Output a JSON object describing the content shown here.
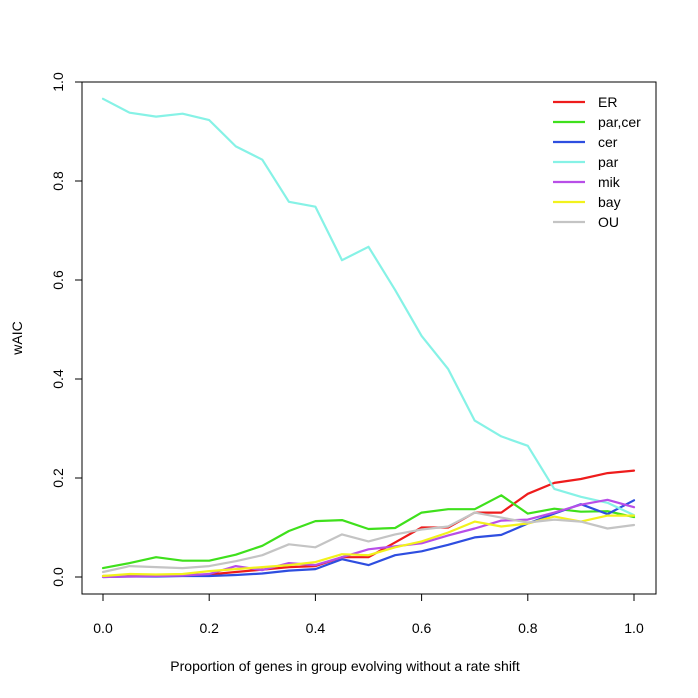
{
  "chart_data": {
    "type": "line",
    "title": "",
    "xlabel": "Proportion of genes in group evolving without a rate shift",
    "ylabel": "wAIC",
    "xlim": [
      0.0,
      1.0
    ],
    "ylim": [
      0.0,
      1.0
    ],
    "xticks": [
      "0.0",
      "0.2",
      "0.4",
      "0.6",
      "0.8",
      "1.0"
    ],
    "yticks": [
      "0.0",
      "0.2",
      "0.4",
      "0.6",
      "0.8",
      "1.0"
    ],
    "legend_position": "top-right",
    "x": [
      0.0,
      0.05,
      0.1,
      0.15,
      0.2,
      0.25,
      0.3,
      0.35,
      0.4,
      0.45,
      0.5,
      0.55,
      0.6,
      0.65,
      0.7,
      0.75,
      0.8,
      0.85,
      0.9,
      0.95,
      1.0
    ],
    "series": [
      {
        "name": "ER",
        "color": "#ee1c1c",
        "values": [
          0.002,
          0.002,
          0.003,
          0.004,
          0.005,
          0.01,
          0.015,
          0.02,
          0.022,
          0.04,
          0.04,
          0.07,
          0.1,
          0.1,
          0.13,
          0.13,
          0.168,
          0.19,
          0.198,
          0.21,
          0.215
        ]
      },
      {
        "name": "par,cer",
        "color": "#3fe01c",
        "values": [
          0.018,
          0.028,
          0.04,
          0.033,
          0.033,
          0.045,
          0.063,
          0.093,
          0.113,
          0.115,
          0.097,
          0.099,
          0.13,
          0.137,
          0.137,
          0.165,
          0.128,
          0.138,
          0.132,
          0.133,
          0.121
        ]
      },
      {
        "name": "cer",
        "color": "#2e4ee0",
        "values": [
          0.0,
          0.001,
          0.001,
          0.002,
          0.002,
          0.004,
          0.007,
          0.013,
          0.016,
          0.036,
          0.024,
          0.044,
          0.052,
          0.065,
          0.08,
          0.085,
          0.108,
          0.128,
          0.147,
          0.127,
          0.155
        ]
      },
      {
        "name": "par",
        "color": "#86f2e6",
        "values": [
          0.966,
          0.938,
          0.93,
          0.936,
          0.923,
          0.87,
          0.843,
          0.758,
          0.748,
          0.64,
          0.667,
          0.58,
          0.487,
          0.42,
          0.316,
          0.284,
          0.265,
          0.178,
          0.162,
          0.15,
          0.125
        ]
      },
      {
        "name": "mik",
        "color": "#b84ee8",
        "values": [
          0.0,
          0.001,
          0.002,
          0.003,
          0.006,
          0.022,
          0.014,
          0.028,
          0.024,
          0.04,
          0.056,
          0.062,
          0.068,
          0.084,
          0.098,
          0.114,
          0.116,
          0.13,
          0.146,
          0.156,
          0.141
        ]
      },
      {
        "name": "bay",
        "color": "#f2f21c",
        "values": [
          0.002,
          0.006,
          0.005,
          0.006,
          0.012,
          0.016,
          0.02,
          0.024,
          0.03,
          0.046,
          0.044,
          0.06,
          0.072,
          0.09,
          0.112,
          0.102,
          0.108,
          0.122,
          0.112,
          0.124,
          0.124
        ]
      },
      {
        "name": "OU",
        "color": "#c4c4c4",
        "values": [
          0.01,
          0.022,
          0.02,
          0.018,
          0.022,
          0.032,
          0.044,
          0.066,
          0.06,
          0.086,
          0.072,
          0.086,
          0.096,
          0.102,
          0.13,
          0.12,
          0.11,
          0.116,
          0.112,
          0.098,
          0.105
        ]
      }
    ]
  }
}
